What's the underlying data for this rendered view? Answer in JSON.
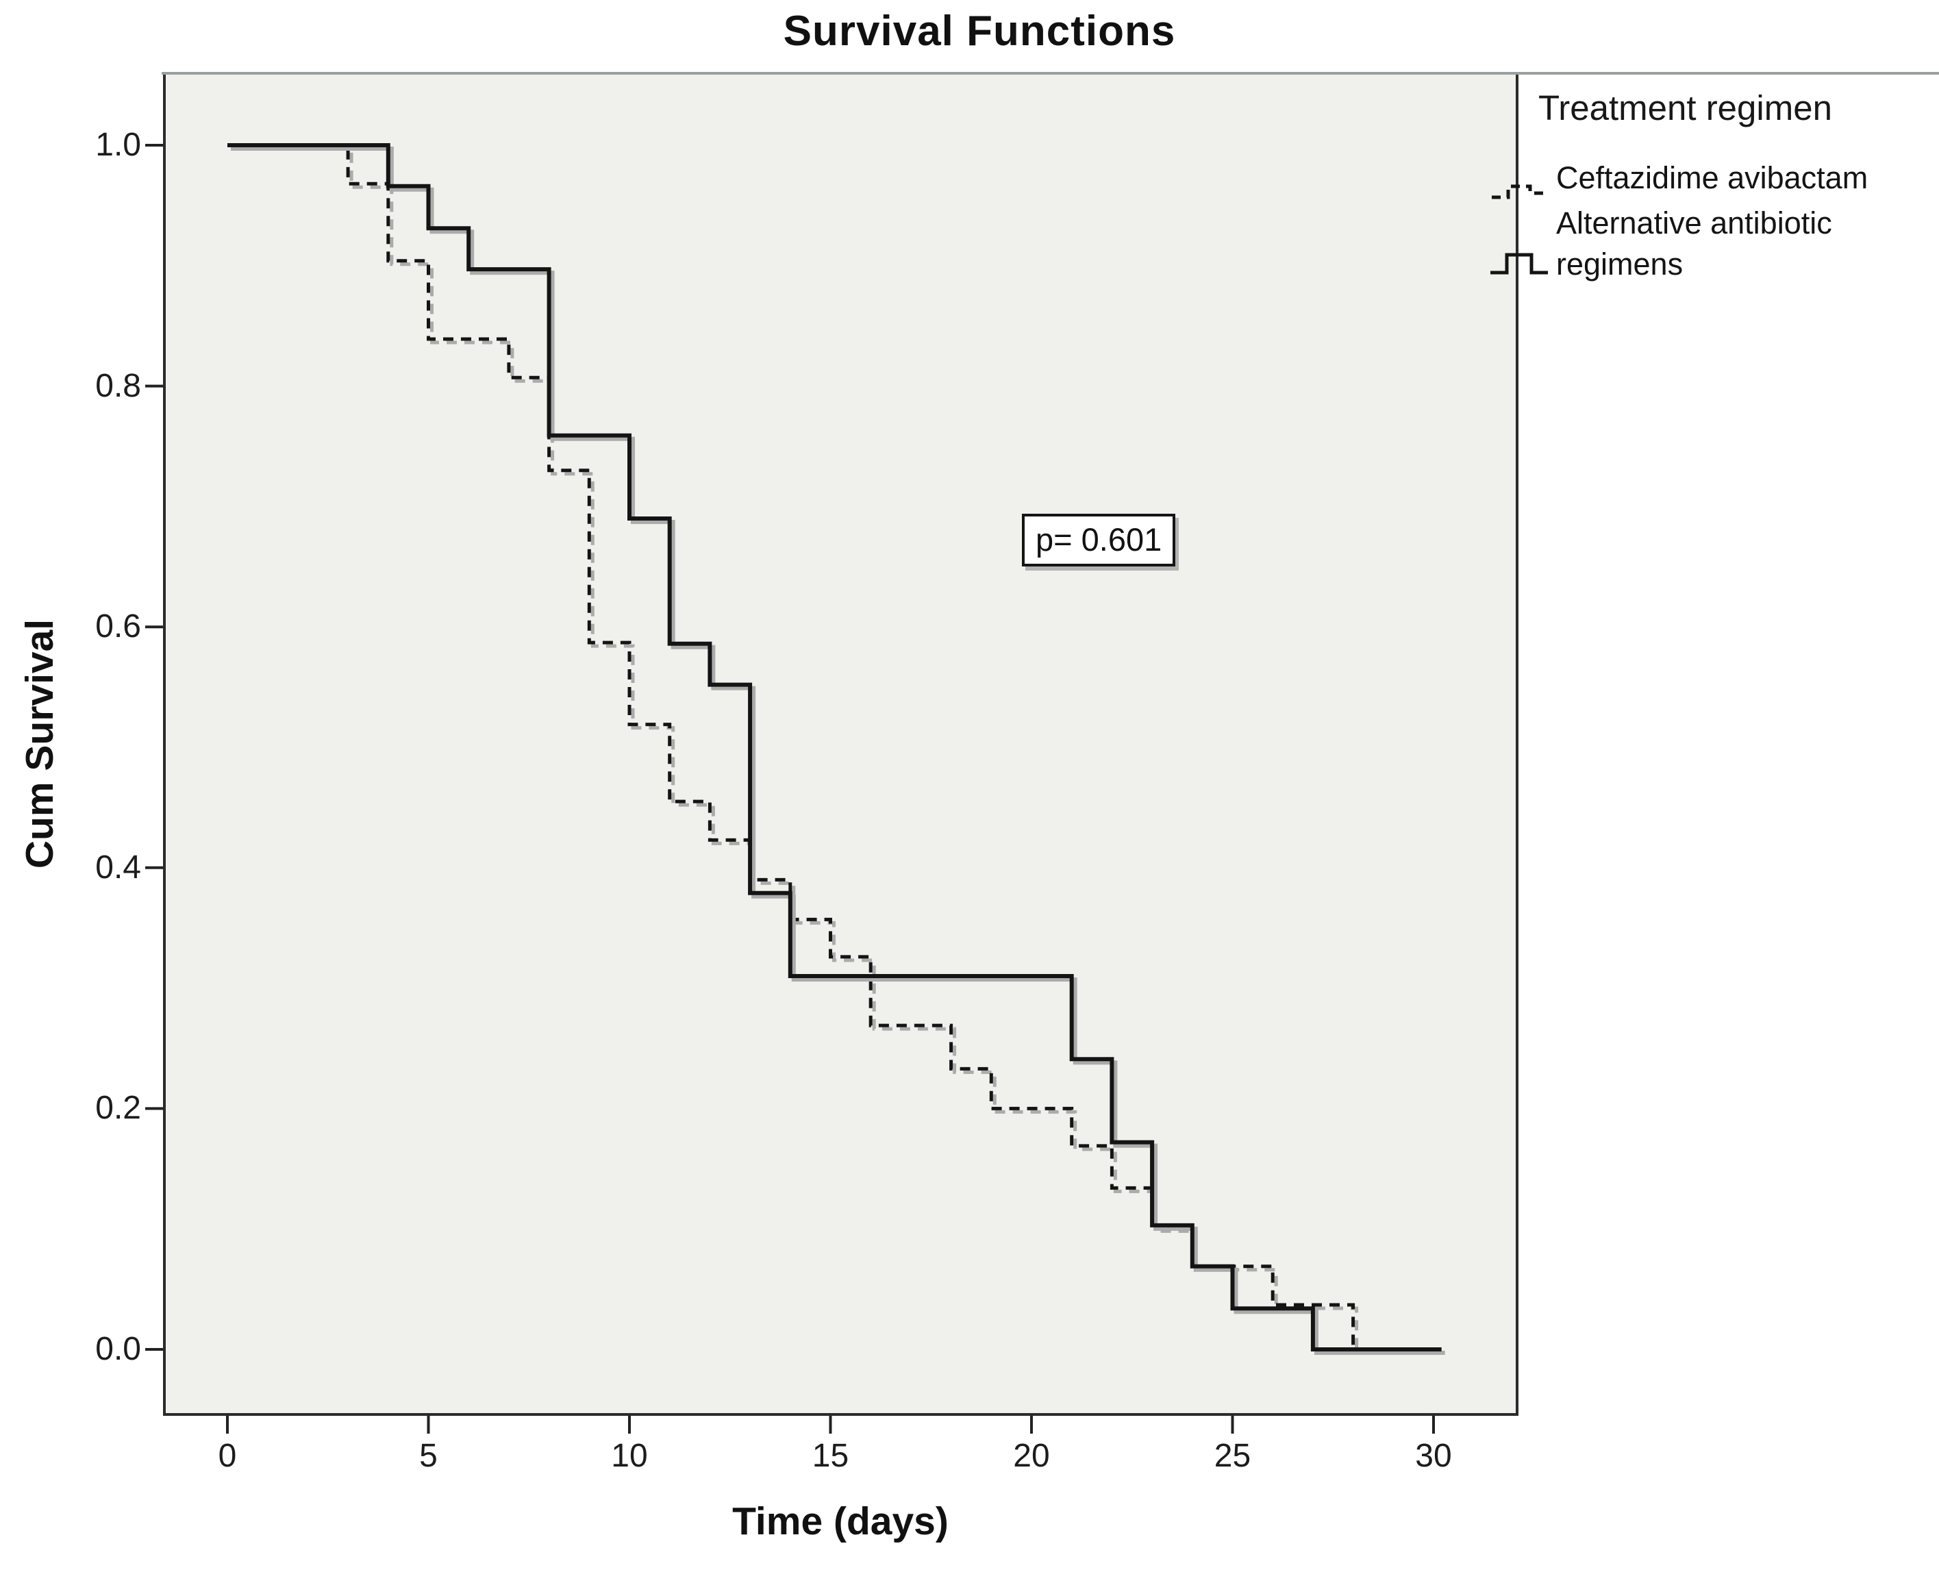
{
  "chart_data": {
    "type": "line",
    "subtype": "kaplan-meier-step",
    "title": "Survival Functions",
    "xlabel": "Time (days)",
    "ylabel": "Cum Survival",
    "xlim": [
      0,
      30
    ],
    "ylim": [
      0.0,
      1.0
    ],
    "grid": false,
    "plot_background": "#f0f0ed",
    "x_ticks": [
      {
        "label": "0",
        "v": 0
      },
      {
        "label": "5",
        "v": 5
      },
      {
        "label": "10",
        "v": 10
      },
      {
        "label": "15",
        "v": 15
      },
      {
        "label": "20",
        "v": 20
      },
      {
        "label": "25",
        "v": 25
      },
      {
        "label": "30",
        "v": 30
      }
    ],
    "y_ticks": [
      {
        "label": "0.0",
        "v": 0.0
      },
      {
        "label": "0.2",
        "v": 0.2
      },
      {
        "label": "0.4",
        "v": 0.4
      },
      {
        "label": "0.6",
        "v": 0.6
      },
      {
        "label": "0.8",
        "v": 0.8
      },
      {
        "label": "1.0",
        "v": 1.0
      }
    ],
    "legend": {
      "title": "Treatment regimen",
      "position": "top-right-outside"
    },
    "annotation": {
      "text": "p= 0.601"
    },
    "line_color": "#141414",
    "shadow_color": "#ababab",
    "series": [
      {
        "name": "Ceftazidime avibactam",
        "style": "dashed",
        "color": "#141414",
        "steps": [
          [
            0,
            1.0
          ],
          [
            3,
            1.0
          ],
          [
            3,
            0.968
          ],
          [
            4,
            0.968
          ],
          [
            4,
            0.904
          ],
          [
            5,
            0.904
          ],
          [
            5,
            0.839
          ],
          [
            7,
            0.839
          ],
          [
            7,
            0.807
          ],
          [
            8,
            0.807
          ],
          [
            8,
            0.73
          ],
          [
            9,
            0.73
          ],
          [
            9,
            0.587
          ],
          [
            10,
            0.587
          ],
          [
            10,
            0.519
          ],
          [
            11,
            0.519
          ],
          [
            11,
            0.455
          ],
          [
            12,
            0.455
          ],
          [
            12,
            0.423
          ],
          [
            13,
            0.423
          ],
          [
            13,
            0.39
          ],
          [
            14,
            0.39
          ],
          [
            14,
            0.357
          ],
          [
            15,
            0.357
          ],
          [
            15,
            0.326
          ],
          [
            16,
            0.326
          ],
          [
            16,
            0.269
          ],
          [
            18,
            0.269
          ],
          [
            18,
            0.233
          ],
          [
            19,
            0.233
          ],
          [
            19,
            0.2
          ],
          [
            21,
            0.2
          ],
          [
            21,
            0.169
          ],
          [
            22,
            0.169
          ],
          [
            22,
            0.134
          ],
          [
            23,
            0.134
          ],
          [
            23,
            0.101
          ],
          [
            24,
            0.101
          ],
          [
            24,
            0.069
          ],
          [
            26,
            0.069
          ],
          [
            26,
            0.037
          ],
          [
            28,
            0.037
          ],
          [
            28,
            0.0
          ],
          [
            30.2,
            0.0
          ]
        ]
      },
      {
        "name": "Alternative antibiotic regimens",
        "style": "solid",
        "color": "#141414",
        "steps": [
          [
            0,
            1.0
          ],
          [
            4,
            1.0
          ],
          [
            4,
            0.966
          ],
          [
            5,
            0.966
          ],
          [
            5,
            0.931
          ],
          [
            6,
            0.931
          ],
          [
            6,
            0.897
          ],
          [
            8,
            0.897
          ],
          [
            8,
            0.759
          ],
          [
            10,
            0.759
          ],
          [
            10,
            0.69
          ],
          [
            11,
            0.69
          ],
          [
            11,
            0.586
          ],
          [
            12,
            0.586
          ],
          [
            12,
            0.552
          ],
          [
            13,
            0.552
          ],
          [
            13,
            0.379
          ],
          [
            14,
            0.379
          ],
          [
            14,
            0.31
          ],
          [
            21,
            0.31
          ],
          [
            21,
            0.241
          ],
          [
            22,
            0.241
          ],
          [
            22,
            0.172
          ],
          [
            23,
            0.172
          ],
          [
            23,
            0.103
          ],
          [
            24,
            0.103
          ],
          [
            24,
            0.069
          ],
          [
            25,
            0.069
          ],
          [
            25,
            0.034
          ],
          [
            27,
            0.034
          ],
          [
            27,
            0.0
          ],
          [
            30.2,
            0.0
          ]
        ]
      }
    ]
  }
}
